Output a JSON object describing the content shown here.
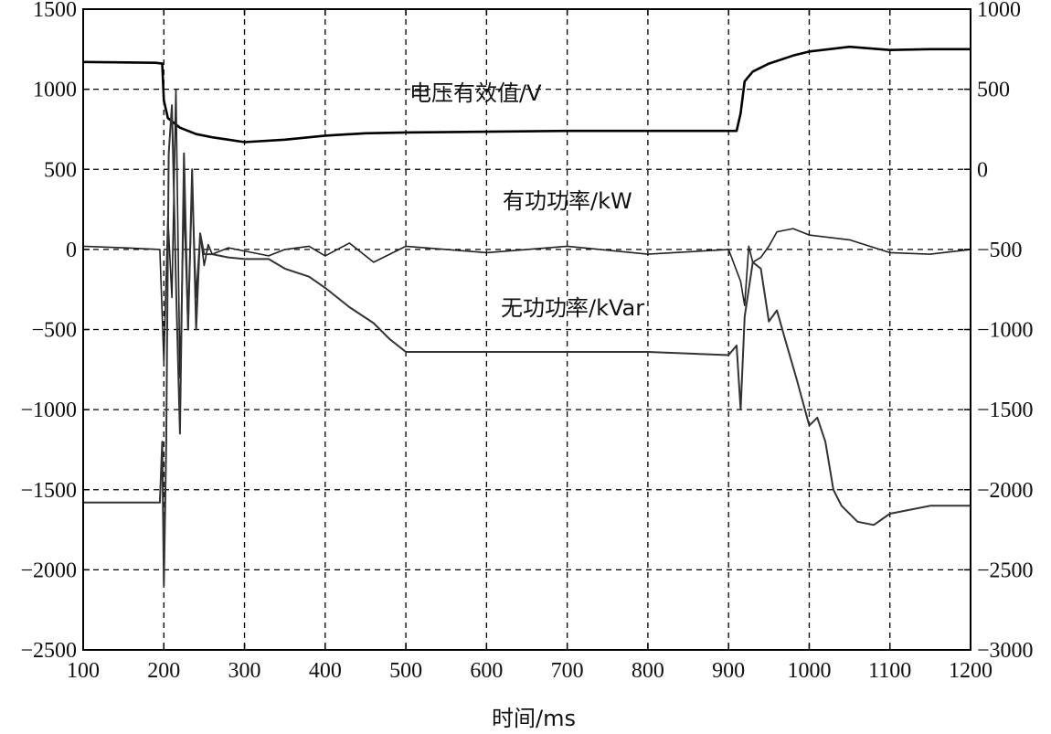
{
  "chart_data": {
    "type": "line",
    "xlabel": "时间/ms",
    "xlim": [
      100,
      1200
    ],
    "x_ticks": [
      100,
      200,
      300,
      400,
      500,
      600,
      700,
      800,
      900,
      1000,
      1100,
      1200
    ],
    "y_left_lim": [
      -2500,
      1500
    ],
    "y_left_ticks": [
      1500,
      1000,
      500,
      0,
      -500,
      -1000,
      -1500,
      -2000,
      -2500
    ],
    "y_right_lim": [
      -3000,
      1000
    ],
    "y_right_ticks": [
      1000,
      500,
      0,
      -500,
      -1000,
      -1500,
      -2000,
      -2500,
      -3000
    ],
    "grid": true,
    "annotations": [
      "电压有效值/V",
      "有功功率/kW",
      "无功功率/kVar"
    ],
    "series": [
      {
        "name": "电压有效值/V",
        "axis": "left",
        "color": "#000000",
        "x": [
          100,
          190,
          198,
          200,
          205,
          210,
          220,
          240,
          260,
          280,
          300,
          350,
          400,
          450,
          500,
          600,
          700,
          800,
          910,
          915,
          920,
          930,
          950,
          980,
          1000,
          1050,
          1100,
          1150,
          1200
        ],
        "y": [
          1170,
          1165,
          1160,
          930,
          820,
          800,
          760,
          720,
          700,
          685,
          670,
          685,
          710,
          725,
          730,
          735,
          740,
          740,
          740,
          850,
          1050,
          1110,
          1160,
          1210,
          1235,
          1265,
          1245,
          1250,
          1250
        ]
      },
      {
        "name": "有功功率/kW",
        "axis": "left",
        "color": "#222222",
        "x": [
          100,
          150,
          195,
          200,
          205,
          210,
          215,
          220,
          225,
          230,
          235,
          240,
          245,
          250,
          255,
          260,
          280,
          300,
          330,
          350,
          380,
          400,
          430,
          460,
          500,
          600,
          700,
          800,
          900,
          915,
          920,
          925,
          930,
          940,
          950,
          960,
          980,
          1000,
          1050,
          1100,
          1150,
          1200
        ],
        "y": [
          20,
          10,
          0,
          -700,
          200,
          -300,
          1000,
          -800,
          300,
          -500,
          400,
          -300,
          100,
          -100,
          30,
          -30,
          10,
          -10,
          -40,
          0,
          20,
          -40,
          40,
          -80,
          20,
          -20,
          20,
          -30,
          0,
          -200,
          -350,
          20,
          -80,
          -50,
          20,
          110,
          130,
          90,
          60,
          -20,
          -30,
          0
        ]
      },
      {
        "name": "无功功率/kVar",
        "axis": "left",
        "color": "#333333",
        "x": [
          100,
          150,
          195,
          198,
          200,
          203,
          206,
          210,
          215,
          220,
          225,
          230,
          235,
          240,
          245,
          250,
          260,
          280,
          300,
          330,
          350,
          380,
          400,
          430,
          460,
          480,
          500,
          600,
          700,
          800,
          900,
          910,
          915,
          920,
          930,
          940,
          950,
          960,
          970,
          985,
          1000,
          1010,
          1020,
          1030,
          1040,
          1060,
          1080,
          1100,
          1150,
          1200
        ],
        "y": [
          -1580,
          -1580,
          -1580,
          -1200,
          -2100,
          -1200,
          600,
          900,
          -200,
          -1150,
          600,
          -500,
          500,
          -500,
          100,
          -30,
          -30,
          -50,
          -60,
          -60,
          -120,
          -170,
          -240,
          -360,
          -460,
          -560,
          -640,
          -640,
          -640,
          -640,
          -660,
          -600,
          -1000,
          -420,
          -80,
          -120,
          -450,
          -380,
          -560,
          -820,
          -1100,
          -1050,
          -1200,
          -1500,
          -1600,
          -1700,
          -1720,
          -1650,
          -1600,
          -1600
        ]
      }
    ]
  },
  "texts": {
    "annot_voltage": "电压有效值/V",
    "annot_active": "有功功率/kW",
    "annot_reactive": "无功功率/kVar",
    "xlabel": "时间/ms"
  }
}
